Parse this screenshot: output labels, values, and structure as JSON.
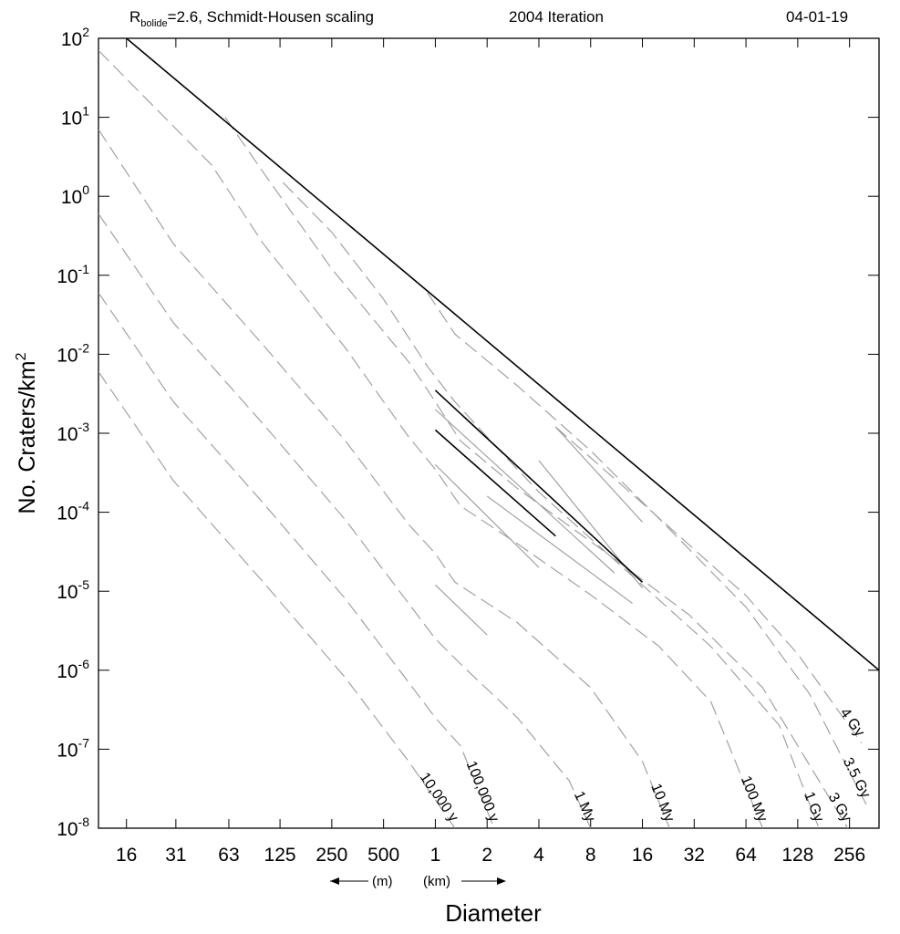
{
  "header": {
    "left_main": "R",
    "left_sub": "bolide",
    "left_rest": "=2.6, Schmidt-Housen scaling",
    "center": "2004 Iteration",
    "right": "04-01-19"
  },
  "chart_data": {
    "type": "line",
    "title": "",
    "xlabel": "Diameter",
    "ylabel_main": "No. Craters/km",
    "ylabel_sup": "2",
    "x_scale": "log2",
    "y_scale": "log10",
    "x_range_km": [
      0.011,
      380
    ],
    "y_range": [
      1e-08,
      100
    ],
    "x_ticks": [
      {
        "km": 0.016,
        "label": "16"
      },
      {
        "km": 0.031,
        "label": "31"
      },
      {
        "km": 0.063,
        "label": "63"
      },
      {
        "km": 0.125,
        "label": "125"
      },
      {
        "km": 0.25,
        "label": "250"
      },
      {
        "km": 0.5,
        "label": "500"
      },
      {
        "km": 1,
        "label": "1"
      },
      {
        "km": 2,
        "label": "2"
      },
      {
        "km": 4,
        "label": "4"
      },
      {
        "km": 8,
        "label": "8"
      },
      {
        "km": 16,
        "label": "16"
      },
      {
        "km": 32,
        "label": "32"
      },
      {
        "km": 64,
        "label": "64"
      },
      {
        "km": 128,
        "label": "128"
      },
      {
        "km": 256,
        "label": "256"
      }
    ],
    "y_ticks": [
      {
        "exp": 2,
        "base": "10",
        "sup": "2"
      },
      {
        "exp": 1,
        "base": "10",
        "sup": "1"
      },
      {
        "exp": 0,
        "base": "10",
        "sup": "0"
      },
      {
        "exp": -1,
        "base": "10",
        "sup": "-1"
      },
      {
        "exp": -2,
        "base": "10",
        "sup": "-2"
      },
      {
        "exp": -3,
        "base": "10",
        "sup": "-3"
      },
      {
        "exp": -4,
        "base": "10",
        "sup": "-4"
      },
      {
        "exp": -5,
        "base": "10",
        "sup": "-5"
      },
      {
        "exp": -6,
        "base": "10",
        "sup": "-6"
      },
      {
        "exp": -7,
        "base": "10",
        "sup": "-7"
      },
      {
        "exp": -8,
        "base": "10",
        "sup": "-8"
      }
    ],
    "unit_labels": {
      "meters": "(m)",
      "kilometers": "(km)"
    },
    "saturation_line": {
      "points": [
        [
          0.016,
          100
        ],
        [
          380,
          1e-06
        ]
      ]
    },
    "solid_segments": [
      {
        "points": [
          [
            1.0,
            0.0035
          ],
          [
            16,
            1.3e-05
          ]
        ]
      },
      {
        "points": [
          [
            1.0,
            0.0011
          ],
          [
            5.0,
            5e-05
          ]
        ]
      }
    ],
    "isochrons": [
      {
        "name": "10,000 y",
        "points": [
          [
            0.011,
            0.006
          ],
          [
            0.03,
            0.00025
          ],
          [
            0.1,
            1.3e-05
          ],
          [
            0.3,
            8e-07
          ],
          [
            0.7,
            7e-08
          ],
          [
            1.3,
            1e-08
          ]
        ]
      },
      {
        "name": "100,000 y",
        "points": [
          [
            0.011,
            0.06
          ],
          [
            0.03,
            0.0025
          ],
          [
            0.1,
            0.00013
          ],
          [
            0.3,
            8e-06
          ],
          [
            0.7,
            7e-07
          ],
          [
            1.0,
            2.5e-07
          ],
          [
            1.4,
            1.1e-07
          ],
          [
            2.2,
            1e-08
          ]
        ]
      },
      {
        "name": "1 My",
        "points": [
          [
            0.011,
            0.6
          ],
          [
            0.03,
            0.025
          ],
          [
            0.1,
            0.0013
          ],
          [
            0.3,
            8e-05
          ],
          [
            0.7,
            7e-06
          ],
          [
            1.0,
            2.5e-06
          ],
          [
            1.4,
            1.2e-06
          ],
          [
            3.0,
            2.5e-07
          ],
          [
            6.0,
            4e-08
          ],
          [
            8.0,
            1e-08
          ]
        ]
      },
      {
        "name": "10 My",
        "points": [
          [
            0.011,
            7
          ],
          [
            0.03,
            0.25
          ],
          [
            0.1,
            0.013
          ],
          [
            0.3,
            0.0008
          ],
          [
            0.7,
            7e-05
          ],
          [
            1.0,
            3e-05
          ],
          [
            1.3,
            1.3e-05
          ],
          [
            3.0,
            4e-06
          ],
          [
            8.0,
            6e-07
          ],
          [
            16,
            7e-08
          ],
          [
            23,
            1e-08
          ]
        ]
      },
      {
        "name": "100 My",
        "points": [
          [
            0.011,
            70
          ],
          [
            0.05,
            2.5
          ],
          [
            0.1,
            0.25
          ],
          [
            0.3,
            0.012
          ],
          [
            0.7,
            0.0009
          ],
          [
            1.0,
            0.00035
          ],
          [
            1.4,
            0.00012
          ],
          [
            3.0,
            4e-05
          ],
          [
            8.0,
            9e-06
          ],
          [
            20,
            2e-06
          ],
          [
            40,
            4e-07
          ],
          [
            80,
            1e-08
          ]
        ]
      },
      {
        "name": "1 Gy",
        "points": [
          [
            0.06,
            10
          ],
          [
            0.1,
            2.0
          ],
          [
            0.25,
            0.12
          ],
          [
            0.7,
            0.008
          ],
          [
            1.0,
            0.0025
          ],
          [
            1.4,
            0.0008
          ],
          [
            3.0,
            0.0002
          ],
          [
            10,
            3e-05
          ],
          [
            40,
            2e-06
          ],
          [
            100,
            2e-07
          ],
          [
            170,
            1e-08
          ]
        ]
      },
      {
        "name": "3 Gy",
        "points": [
          [
            0.13,
            1.5
          ],
          [
            0.25,
            0.35
          ],
          [
            0.5,
            0.05
          ],
          [
            0.9,
            0.007
          ],
          [
            1.3,
            0.0025
          ],
          [
            2.0,
            0.0009
          ],
          [
            4.0,
            0.00018
          ],
          [
            10,
            3e-05
          ],
          [
            30,
            5e-06
          ],
          [
            80,
            6e-07
          ],
          [
            250,
            1e-08
          ]
        ]
      },
      {
        "name": "3.5 Gy",
        "points": [
          [
            0.9,
            0.06
          ],
          [
            1.3,
            0.018
          ],
          [
            3.0,
            0.004
          ],
          [
            8.0,
            0.0006
          ],
          [
            20,
            8.3e-05
          ],
          [
            64,
            6.3e-06
          ],
          [
            150,
            5e-07
          ],
          [
            320,
            2e-08
          ]
        ]
      },
      {
        "name": "4 Gy",
        "points": [
          [
            5.0,
            0.0012
          ],
          [
            16,
            0.00013
          ],
          [
            64,
            8.8e-06
          ],
          [
            128,
            1.6e-06
          ],
          [
            300,
            1.2e-07
          ]
        ]
      }
    ],
    "short_segments": [
      {
        "points": [
          [
            1.0,
            1.2e-05
          ],
          [
            2.0,
            2.8e-06
          ]
        ]
      },
      {
        "points": [
          [
            1.0,
            0.0004
          ],
          [
            4.0,
            2e-05
          ]
        ]
      },
      {
        "points": [
          [
            1.0,
            0.002
          ],
          [
            11,
            1.7e-05
          ]
        ]
      },
      {
        "points": [
          [
            5.0,
            0.0012
          ],
          [
            16,
            7.5e-05
          ]
        ]
      },
      {
        "points": [
          [
            4.0,
            0.00045
          ],
          [
            16,
            1.1e-05
          ]
        ]
      },
      {
        "points": [
          [
            2.0,
            0.00016
          ],
          [
            14,
            7e-06
          ]
        ]
      }
    ]
  }
}
